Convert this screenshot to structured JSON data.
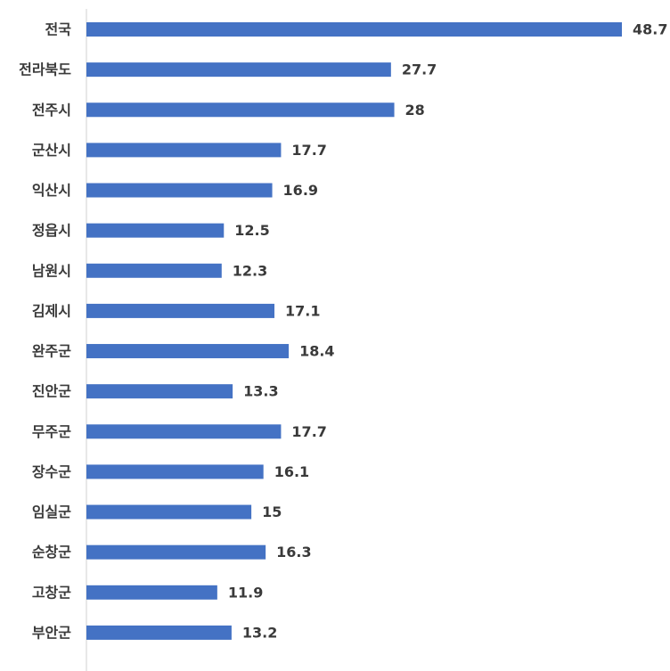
{
  "chart_data": {
    "type": "bar",
    "orientation": "horizontal",
    "categories": [
      "전국",
      "전라북도",
      "전주시",
      "군산시",
      "익산시",
      "정읍시",
      "남원시",
      "김제시",
      "완주군",
      "진안군",
      "무주군",
      "장수군",
      "임실군",
      "순창군",
      "고창군",
      "부안군"
    ],
    "values": [
      48.7,
      27.7,
      28,
      17.7,
      16.9,
      12.5,
      12.3,
      17.1,
      18.4,
      13.3,
      17.7,
      16.1,
      15,
      16.3,
      11.9,
      13.2
    ],
    "color": "#4472c4"
  }
}
